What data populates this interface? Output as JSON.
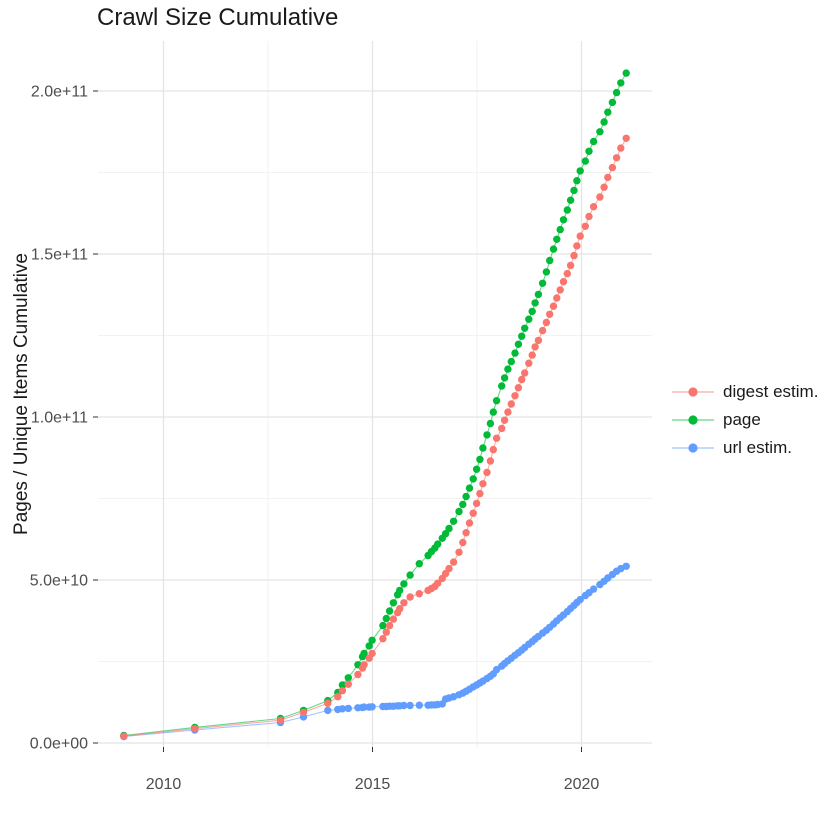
{
  "figure": {
    "title": "Crawl Size Cumulative",
    "y_axis_title": "Pages / Unique Items Cumulative"
  },
  "legend": {
    "items": [
      {
        "label": "digest estim.",
        "color": "#F8766D"
      },
      {
        "label": "page",
        "color": "#00BA38"
      },
      {
        "label": "url estim.",
        "color": "#619CFF"
      }
    ]
  },
  "axes": {
    "x": {
      "major_ticks": [
        2010,
        2015,
        2020
      ],
      "tick_labels": [
        "2010",
        "2015",
        "2020"
      ],
      "minor_ticks": [
        2012.5,
        2017.5
      ]
    },
    "y": {
      "major_ticks_billions": [
        0,
        50,
        100,
        150,
        200
      ],
      "tick_labels": [
        "0.0e+00",
        "5.0e+10",
        "1.0e+11",
        "1.5e+11",
        "2.0e+11"
      ],
      "minor_ticks_billions": [
        25,
        75,
        125,
        175
      ]
    }
  },
  "chart_data": {
    "type": "scatter",
    "title": "Crawl Size Cumulative",
    "xlabel": "",
    "ylabel": "Pages / Unique Items Cumulative",
    "grid": true,
    "legend_position": "right",
    "xlim": [
      2008.45,
      2021.7
    ],
    "ylim": [
      -8000000000.0,
      215000000000.0
    ],
    "value_unit": "items, values given in billions (1e9)",
    "x_years": [
      2009.05,
      2010.75,
      2012.8,
      2013.35,
      2013.93,
      2014.17,
      2014.28,
      2014.42,
      2014.65,
      2014.76,
      2014.8,
      2014.92,
      2014.99,
      2015.25,
      2015.33,
      2015.41,
      2015.5,
      2015.6,
      2015.65,
      2015.75,
      2015.9,
      2016.12,
      2016.33,
      2016.41,
      2016.49,
      2016.56,
      2016.67,
      2016.75,
      2016.83,
      2016.94,
      2017.07,
      2017.16,
      2017.24,
      2017.32,
      2017.41,
      2017.49,
      2017.57,
      2017.64,
      2017.74,
      2017.82,
      2017.89,
      2017.97,
      2018.09,
      2018.16,
      2018.24,
      2018.32,
      2018.41,
      2018.49,
      2018.57,
      2018.64,
      2018.74,
      2018.82,
      2018.89,
      2018.97,
      2019.07,
      2019.16,
      2019.24,
      2019.33,
      2019.41,
      2019.49,
      2019.57,
      2019.66,
      2019.74,
      2019.82,
      2019.89,
      2019.97,
      2020.09,
      2020.18,
      2020.29,
      2020.44,
      2020.54,
      2020.63,
      2020.74,
      2020.84,
      2020.94,
      2021.07
    ],
    "series": [
      {
        "name": "digest estim.",
        "color": "#F8766D",
        "values_billions": [
          2.1,
          4.4,
          7.0,
          9.4,
          12.2,
          14.2,
          16.0,
          18.0,
          21.0,
          23.0,
          24.0,
          26.0,
          27.5,
          32.0,
          34.0,
          36.0,
          38.0,
          40.0,
          41.2,
          43.0,
          44.8,
          45.8,
          46.8,
          47.4,
          48.0,
          49.0,
          50.5,
          52.0,
          53.5,
          55.5,
          58.5,
          61.5,
          64.5,
          67.5,
          70.5,
          73.5,
          76.5,
          79.5,
          83.0,
          86.5,
          90.0,
          93.5,
          96.5,
          99.0,
          101.5,
          104.0,
          106.5,
          109.0,
          111.5,
          113.5,
          116.5,
          119.0,
          121.5,
          123.5,
          126.5,
          129.0,
          131.5,
          134.0,
          136.5,
          139.0,
          141.5,
          144.0,
          146.5,
          149.5,
          152.5,
          155.5,
          158.5,
          161.5,
          164.5,
          167.5,
          170.5,
          173.5,
          176.5,
          179.5,
          182.5,
          185.5
        ]
      },
      {
        "name": "page",
        "color": "#00BA38",
        "values_billions": [
          2.3,
          4.8,
          7.5,
          10.0,
          13.0,
          15.5,
          17.8,
          20.0,
          24.0,
          26.5,
          27.5,
          29.8,
          31.5,
          36.0,
          38.2,
          40.5,
          43.0,
          45.5,
          46.8,
          48.8,
          51.5,
          55.0,
          57.5,
          58.7,
          59.8,
          61.0,
          62.8,
          64.2,
          65.8,
          68.0,
          71.0,
          73.2,
          75.6,
          78.2,
          81.0,
          84.0,
          87.0,
          90.5,
          94.5,
          98.0,
          101.5,
          105.0,
          109.5,
          112.0,
          114.7,
          117.0,
          119.6,
          122.3,
          124.8,
          127.2,
          130.0,
          132.4,
          135.0,
          137.6,
          141.0,
          144.5,
          148.0,
          151.5,
          154.5,
          157.5,
          160.5,
          163.5,
          166.5,
          169.5,
          172.5,
          175.5,
          178.5,
          181.5,
          184.5,
          187.5,
          190.5,
          193.5,
          196.5,
          199.5,
          202.5,
          205.5
        ]
      },
      {
        "name": "url estim.",
        "color": "#619CFF",
        "values_billions": [
          2.0,
          4.0,
          6.3,
          8.0,
          10.0,
          10.3,
          10.5,
          10.6,
          10.8,
          10.9,
          11.0,
          11.0,
          11.1,
          11.2,
          11.2,
          11.3,
          11.3,
          11.4,
          11.4,
          11.5,
          11.5,
          11.6,
          11.6,
          11.7,
          11.7,
          11.8,
          12.0,
          13.5,
          13.8,
          14.2,
          14.8,
          15.3,
          15.9,
          16.5,
          17.2,
          17.8,
          18.4,
          19.0,
          19.8,
          20.5,
          21.2,
          22.5,
          23.6,
          24.4,
          25.2,
          26.0,
          26.9,
          27.7,
          28.5,
          29.3,
          30.3,
          31.1,
          31.9,
          32.7,
          33.7,
          34.6,
          35.5,
          36.5,
          37.5,
          38.4,
          39.3,
          40.3,
          41.3,
          42.2,
          43.1,
          44.0,
          45.2,
          46.1,
          47.2,
          48.6,
          49.6,
          50.6,
          51.7,
          52.7,
          53.5,
          54.2
        ]
      }
    ]
  }
}
